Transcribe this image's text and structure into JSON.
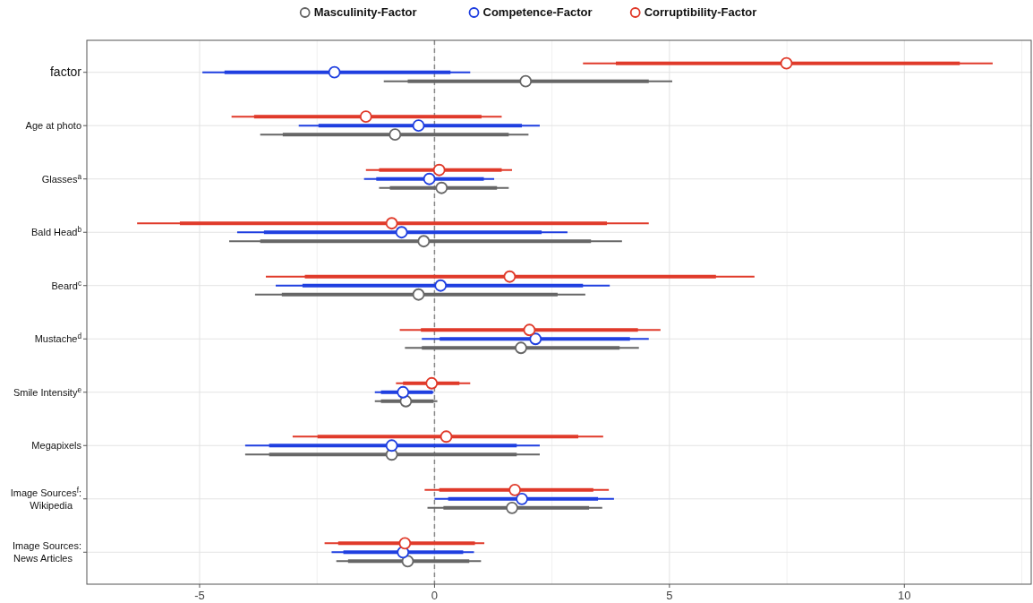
{
  "chart_data": {
    "type": "scatter",
    "orientation": "horizontal",
    "categories": [
      "factor",
      "Age at photo",
      "Glasses$^{a}$",
      "Bald Head$^{b}$",
      "Beard$^{c}$",
      "Mustache$^{d}$",
      "Smile Intensity$^{e}$",
      "Megapixels",
      "Image Sources$^{f}$:\nWikipedia",
      "Image Sources:\nNews Articles"
    ],
    "series": [
      {
        "name": "Masculinity-Factor",
        "color": "#666666",
        "values": [
          1.94,
          -0.84,
          0.15,
          -0.23,
          -0.34,
          1.84,
          -0.61,
          -0.91,
          1.65,
          -0.57
        ],
        "errors": [
          [
            -1.08,
            5.06
          ],
          [
            -3.71,
            2.0
          ],
          [
            -1.18,
            1.58
          ],
          [
            -4.37,
            3.99
          ],
          [
            -3.82,
            3.21
          ],
          [
            -0.63,
            4.35
          ],
          [
            -1.27,
            0.06
          ],
          [
            -4.03,
            2.24
          ],
          [
            -0.15,
            3.57
          ],
          [
            -2.09,
            0.99
          ]
        ]
      },
      {
        "name": "Competence-Factor",
        "color": "#1f3fe0",
        "values": [
          -2.13,
          -0.34,
          -0.11,
          -0.7,
          0.13,
          2.15,
          -0.67,
          -0.91,
          1.86,
          -0.67
        ],
        "errors": [
          [
            -4.94,
            0.76
          ],
          [
            -2.89,
            2.24
          ],
          [
            -1.5,
            1.27
          ],
          [
            -4.2,
            2.83
          ],
          [
            -3.38,
            3.73
          ],
          [
            -0.27,
            4.56
          ],
          [
            -1.27,
            -0.02
          ],
          [
            -4.03,
            2.24
          ],
          [
            0.0,
            3.82
          ],
          [
            -2.19,
            0.84
          ]
        ]
      },
      {
        "name": "Corruptibility-Factor",
        "color": "#e03a2a",
        "values": [
          7.49,
          -1.46,
          0.1,
          -0.91,
          1.6,
          2.02,
          -0.06,
          0.25,
          1.71,
          -0.63
        ],
        "errors": [
          [
            3.16,
            11.88
          ],
          [
            -4.32,
            1.43
          ],
          [
            -1.46,
            1.65
          ],
          [
            -6.33,
            4.56
          ],
          [
            -3.59,
            6.81
          ],
          [
            -0.74,
            4.81
          ],
          [
            -0.82,
            0.76
          ],
          [
            -3.02,
            3.59
          ],
          [
            -0.21,
            3.71
          ],
          [
            -2.34,
            1.06
          ]
        ]
      },
      {
        "type": "bar",
        "color": "#666666",
        "base": [
          -0.57,
          -3.23,
          -0.95,
          -3.71,
          -3.25,
          -0.27,
          -1.14,
          -3.52,
          0.19,
          -1.84
        ],
        "values": [
          5.13,
          4.81,
          2.28,
          7.04,
          5.87,
          4.21,
          1.12,
          5.27,
          3.1,
          2.58
        ]
      },
      {
        "type": "bar",
        "color": "#1f3fe0",
        "base": [
          -4.47,
          -2.47,
          -1.24,
          -3.63,
          -2.81,
          0.11,
          -1.14,
          -3.52,
          0.29,
          -1.94
        ],
        "values": [
          4.81,
          4.33,
          2.29,
          5.91,
          5.97,
          4.05,
          1.1,
          5.27,
          3.19,
          2.55
        ]
      },
      {
        "type": "bar",
        "color": "#e03a2a",
        "base": [
          3.86,
          -3.84,
          -1.18,
          -5.42,
          -2.76,
          -0.29,
          -0.67,
          -2.49,
          0.1,
          -2.05
        ],
        "values": [
          7.32,
          4.84,
          2.61,
          9.09,
          8.75,
          4.62,
          1.2,
          5.55,
          3.28,
          2.91
        ]
      }
    ],
    "xlim": [
      -7.4,
      12.7
    ],
    "xticks": [
      -5,
      {
        "value": -2.5,
        "label": null
      },
      0,
      {
        "value": 2.5,
        "label": null
      },
      5,
      {
        "value": 7.5,
        "label": null
      },
      10,
      {
        "value": 12.5,
        "label": null
      }
    ],
    "ref_lines": [
      {
        "axis": "x",
        "value": 0,
        "color": "#888888",
        "line_style": "dashed"
      }
    ],
    "grid": true,
    "legend": "top",
    "marker": "circle"
  }
}
